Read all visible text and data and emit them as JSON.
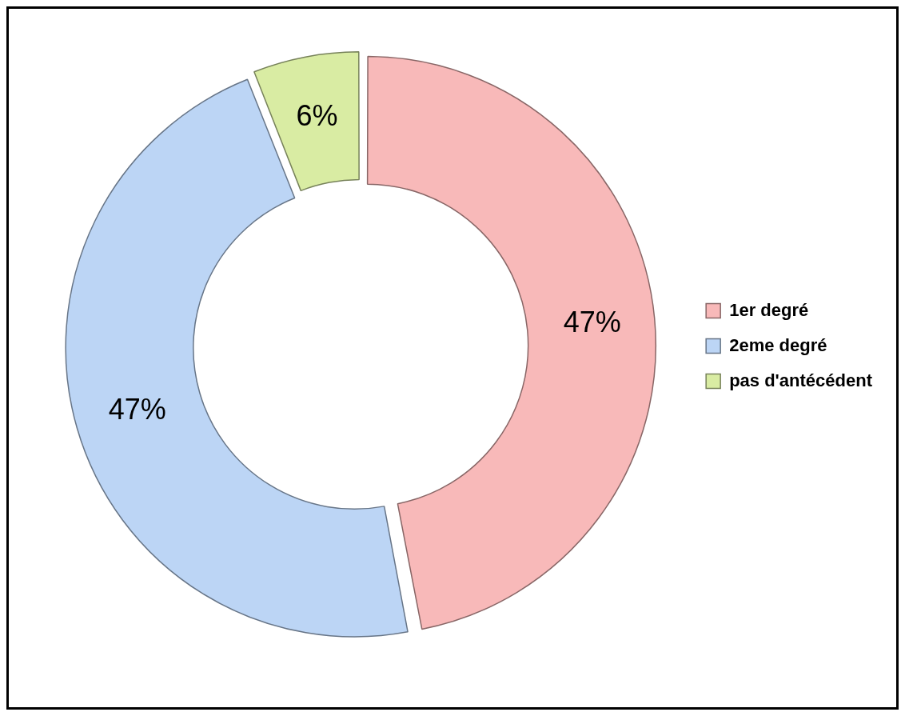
{
  "chart_data": {
    "type": "donut",
    "categories": [
      "1er degré",
      "2eme degré",
      "pas d'antécédent"
    ],
    "values": [
      47,
      47,
      6
    ],
    "colors": [
      "#f8b9b9",
      "#bcd5f5",
      "#d9eca3"
    ],
    "value_labels": [
      "47%",
      "47%",
      "6%"
    ],
    "legend": "right"
  }
}
